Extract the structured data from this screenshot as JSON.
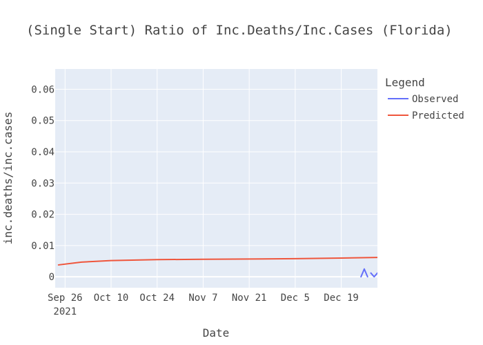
{
  "chart_data": {
    "type": "line",
    "title": "(Single Start) Ratio of Inc.Deaths/Inc.Cases (Florida)",
    "xlabel": "Date",
    "ylabel": "inc.deaths/inc.cases",
    "x_range": [
      "2021-09-23",
      "2021-12-30"
    ],
    "ylim": [
      -0.0035,
      0.0665
    ],
    "x_ticks": [
      {
        "date": "2021-09-26",
        "label": "Sep 26",
        "sublabel": "2021"
      },
      {
        "date": "2021-10-10",
        "label": "Oct 10"
      },
      {
        "date": "2021-10-24",
        "label": "Oct 24"
      },
      {
        "date": "2021-11-07",
        "label": "Nov 7"
      },
      {
        "date": "2021-11-21",
        "label": "Nov 21"
      },
      {
        "date": "2021-12-05",
        "label": "Dec 5"
      },
      {
        "date": "2021-12-19",
        "label": "Dec 19"
      }
    ],
    "y_ticks": [
      0,
      0.01,
      0.02,
      0.03,
      0.04,
      0.05,
      0.06
    ],
    "y_tick_labels": [
      "0",
      "0.01",
      "0.02",
      "0.03",
      "0.04",
      "0.05",
      "0.06"
    ],
    "grid": true,
    "legend": {
      "title": "Legend",
      "placement": "right"
    },
    "series": [
      {
        "name": "Observed",
        "color": "#636efa",
        "segments": [
          [
            {
              "x": "2021-12-25",
              "y": 0
            },
            {
              "x": "2021-12-26",
              "y": 0.0025
            },
            {
              "x": "2021-12-27",
              "y": 0
            }
          ],
          [
            {
              "x": "2021-12-28",
              "y": 0.0012
            },
            {
              "x": "2021-12-29",
              "y": 0
            },
            {
              "x": "2021-12-30",
              "y": 0.0012
            }
          ]
        ]
      },
      {
        "name": "Predicted",
        "color": "#ef553b",
        "points": [
          {
            "x": "2021-09-24",
            "y": 0.0038
          },
          {
            "x": "2021-10-01",
            "y": 0.0047
          },
          {
            "x": "2021-10-10",
            "y": 0.0052
          },
          {
            "x": "2021-10-24",
            "y": 0.0055
          },
          {
            "x": "2021-11-07",
            "y": 0.0056
          },
          {
            "x": "2021-11-21",
            "y": 0.0057
          },
          {
            "x": "2021-12-05",
            "y": 0.0058
          },
          {
            "x": "2021-12-19",
            "y": 0.006
          },
          {
            "x": "2021-12-30",
            "y": 0.0062
          }
        ]
      }
    ]
  }
}
